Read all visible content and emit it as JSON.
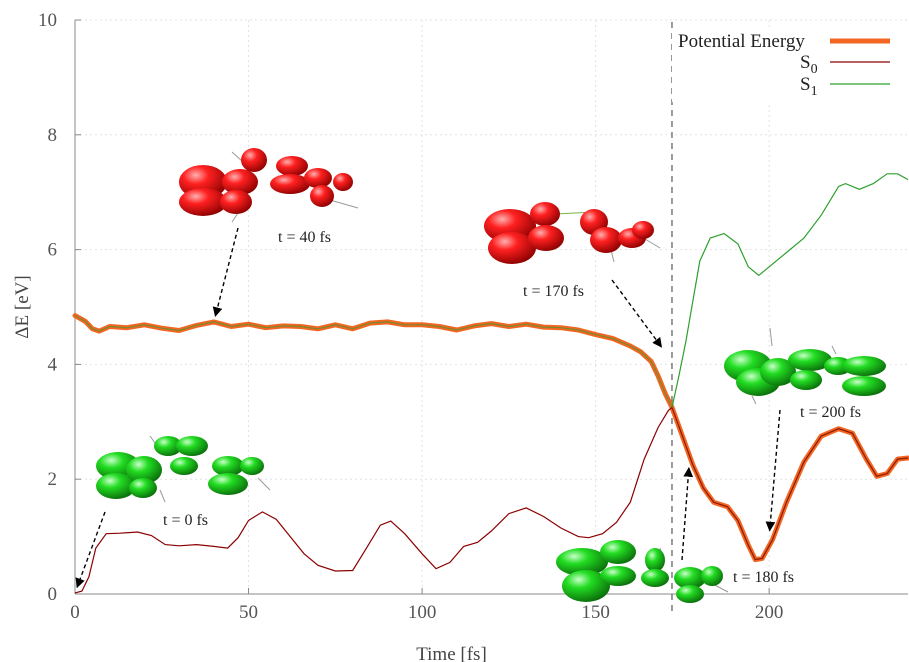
{
  "chart_data": {
    "type": "line",
    "xlabel": "Time [fs]",
    "ylabel": "ΔE [eV]",
    "xlim": [
      0,
      240
    ],
    "ylim": [
      0,
      10
    ],
    "xticks": [
      0,
      50,
      100,
      150,
      200
    ],
    "yticks": [
      0,
      2,
      4,
      6,
      8,
      10
    ],
    "grid": true,
    "legend_position": "top-right",
    "crossing_time": 172,
    "series": [
      {
        "name": "Potential Energy",
        "color": "#f26522",
        "points": [
          [
            0,
            4.85
          ],
          [
            3,
            4.75
          ],
          [
            5,
            4.62
          ],
          [
            7,
            4.58
          ],
          [
            10,
            4.66
          ],
          [
            15,
            4.64
          ],
          [
            20,
            4.69
          ],
          [
            25,
            4.63
          ],
          [
            30,
            4.59
          ],
          [
            35,
            4.68
          ],
          [
            40,
            4.74
          ],
          [
            45,
            4.66
          ],
          [
            50,
            4.7
          ],
          [
            55,
            4.64
          ],
          [
            60,
            4.67
          ],
          [
            65,
            4.66
          ],
          [
            70,
            4.62
          ],
          [
            75,
            4.69
          ],
          [
            80,
            4.62
          ],
          [
            85,
            4.72
          ],
          [
            90,
            4.74
          ],
          [
            95,
            4.69
          ],
          [
            100,
            4.69
          ],
          [
            105,
            4.66
          ],
          [
            110,
            4.6
          ],
          [
            115,
            4.67
          ],
          [
            120,
            4.71
          ],
          [
            125,
            4.66
          ],
          [
            130,
            4.7
          ],
          [
            135,
            4.65
          ],
          [
            140,
            4.64
          ],
          [
            145,
            4.6
          ],
          [
            150,
            4.52
          ],
          [
            155,
            4.45
          ],
          [
            160,
            4.32
          ],
          [
            163,
            4.22
          ],
          [
            166,
            4.05
          ],
          [
            168,
            3.8
          ],
          [
            170,
            3.5
          ],
          [
            172,
            3.25
          ],
          [
            175,
            2.75
          ],
          [
            178,
            2.25
          ],
          [
            181,
            1.85
          ],
          [
            184,
            1.6
          ],
          [
            188,
            1.52
          ],
          [
            191,
            1.28
          ],
          [
            194,
            0.85
          ],
          [
            196,
            0.6
          ],
          [
            198,
            0.62
          ],
          [
            201,
            0.95
          ],
          [
            205,
            1.6
          ],
          [
            210,
            2.3
          ],
          [
            215,
            2.75
          ],
          [
            220,
            2.88
          ],
          [
            224,
            2.8
          ],
          [
            228,
            2.35
          ],
          [
            231,
            2.05
          ],
          [
            234,
            2.1
          ],
          [
            237,
            2.35
          ],
          [
            240,
            2.37
          ]
        ]
      },
      {
        "name": "S0",
        "color": "#8b0000",
        "points": [
          [
            0,
            0.02
          ],
          [
            2,
            0.05
          ],
          [
            4,
            0.3
          ],
          [
            6,
            0.8
          ],
          [
            9,
            1.05
          ],
          [
            13,
            1.06
          ],
          [
            18,
            1.08
          ],
          [
            22,
            1.02
          ],
          [
            26,
            0.86
          ],
          [
            30,
            0.84
          ],
          [
            35,
            0.86
          ],
          [
            40,
            0.83
          ],
          [
            44,
            0.8
          ],
          [
            47,
            0.98
          ],
          [
            50,
            1.28
          ],
          [
            54,
            1.43
          ],
          [
            58,
            1.3
          ],
          [
            62,
            1.0
          ],
          [
            66,
            0.7
          ],
          [
            70,
            0.5
          ],
          [
            75,
            0.4
          ],
          [
            80,
            0.41
          ],
          [
            84,
            0.8
          ],
          [
            88,
            1.2
          ],
          [
            91,
            1.27
          ],
          [
            95,
            1.05
          ],
          [
            100,
            0.7
          ],
          [
            104,
            0.44
          ],
          [
            108,
            0.55
          ],
          [
            112,
            0.83
          ],
          [
            116,
            0.9
          ],
          [
            120,
            1.1
          ],
          [
            125,
            1.4
          ],
          [
            130,
            1.5
          ],
          [
            135,
            1.35
          ],
          [
            140,
            1.15
          ],
          [
            145,
            1.0
          ],
          [
            148,
            0.98
          ],
          [
            152,
            1.05
          ],
          [
            156,
            1.25
          ],
          [
            160,
            1.6
          ],
          [
            164,
            2.35
          ],
          [
            168,
            2.9
          ],
          [
            171,
            3.2
          ],
          [
            172,
            3.25
          ]
        ]
      },
      {
        "name": "S1",
        "color": "#2ca02c",
        "points": [
          [
            172,
            3.25
          ],
          [
            174,
            3.8
          ],
          [
            176,
            4.4
          ],
          [
            178,
            5.1
          ],
          [
            180,
            5.8
          ],
          [
            183,
            6.2
          ],
          [
            187,
            6.28
          ],
          [
            191,
            6.1
          ],
          [
            194,
            5.7
          ],
          [
            197,
            5.55
          ],
          [
            200,
            5.7
          ],
          [
            205,
            5.95
          ],
          [
            210,
            6.2
          ],
          [
            215,
            6.6
          ],
          [
            220,
            7.1
          ],
          [
            222,
            7.15
          ],
          [
            226,
            7.05
          ],
          [
            230,
            7.15
          ],
          [
            234,
            7.32
          ],
          [
            237,
            7.32
          ],
          [
            240,
            7.22
          ]
        ]
      }
    ],
    "annotations": [
      {
        "text": "t = 0 fs",
        "point": [
          0,
          0.02
        ],
        "color": "green"
      },
      {
        "text": "t = 40 fs",
        "point": [
          40,
          4.74
        ],
        "color": "red"
      },
      {
        "text": "t = 170 fs",
        "point": [
          170,
          4.22
        ],
        "color": "red"
      },
      {
        "text": "t = 180 fs",
        "point": [
          177,
          2.3
        ],
        "color": "green"
      },
      {
        "text": "t = 200 fs",
        "point": [
          200,
          1.0
        ],
        "color": "green"
      }
    ]
  },
  "legend": {
    "items": [
      {
        "label": "Potential Energy",
        "sub": ""
      },
      {
        "label": "S",
        "sub": "0"
      },
      {
        "label": "S",
        "sub": "1"
      }
    ]
  }
}
